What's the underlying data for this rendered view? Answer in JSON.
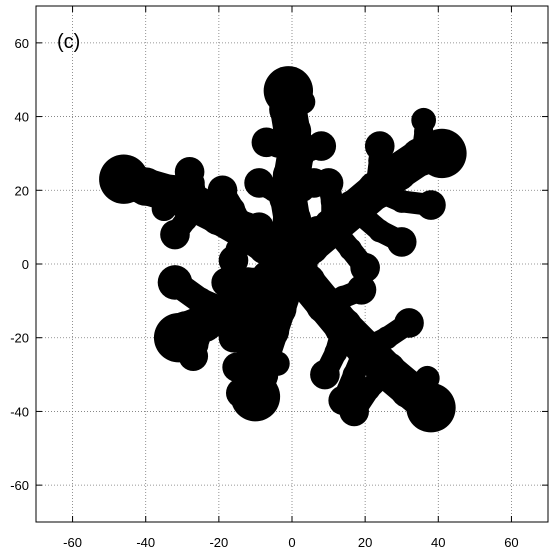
{
  "chart_data": {
    "type": "scatter",
    "panel_label": "(c)",
    "title": "",
    "xlabel": "",
    "ylabel": "",
    "xlim": [
      -70,
      70
    ],
    "ylim": [
      -70,
      70
    ],
    "x_ticks": [
      -60,
      -40,
      -20,
      0,
      20,
      40,
      60
    ],
    "y_ticks": [
      -60,
      -40,
      -20,
      0,
      20,
      40,
      60
    ],
    "x_tick_labels": [
      "-60",
      "-40",
      "-20",
      "0",
      "20",
      "40",
      "60"
    ],
    "y_tick_labels": [
      "-60",
      "-40",
      "-20",
      "0",
      "20",
      "40",
      "60"
    ],
    "grid": true,
    "grid_style": "dotted",
    "mark_color": "#000000",
    "description_shape": "six-armed dendritic cluster",
    "arms": [
      {
        "name": "arm-up",
        "points": [
          [
            0,
            0
          ],
          [
            -1,
            6
          ],
          [
            0,
            12
          ],
          [
            -1,
            18
          ],
          [
            0,
            24
          ],
          [
            1,
            30
          ],
          [
            0,
            36
          ],
          [
            -1,
            42
          ],
          [
            -1,
            47
          ]
        ],
        "width": 5.0,
        "branches": [
          {
            "from": 1,
            "points": [
              [
                -1,
                6
              ],
              [
                -5,
                8
              ],
              [
                -9,
                10
              ]
            ],
            "width": 3.0
          },
          {
            "from": 1,
            "points": [
              [
                -1,
                6
              ],
              [
                3,
                8
              ],
              [
                7,
                9
              ]
            ],
            "width": 3.0
          },
          {
            "from": 3,
            "points": [
              [
                -1,
                18
              ],
              [
                -5,
                20
              ],
              [
                -9,
                22
              ]
            ],
            "width": 3.0
          },
          {
            "from": 3,
            "points": [
              [
                -1,
                18
              ],
              [
                3,
                20
              ],
              [
                6,
                22
              ]
            ],
            "width": 3.0
          },
          {
            "from": 5,
            "points": [
              [
                1,
                30
              ],
              [
                -4,
                32
              ],
              [
                -7,
                33
              ]
            ],
            "width": 3.0
          },
          {
            "from": 5,
            "points": [
              [
                1,
                30
              ],
              [
                5,
                31
              ],
              [
                8,
                32
              ]
            ],
            "width": 3.0
          },
          {
            "from": 7,
            "points": [
              [
                -1,
                42
              ],
              [
                2,
                43
              ],
              [
                3,
                44
              ]
            ],
            "width": 2.5
          }
        ]
      },
      {
        "name": "arm-upper-left",
        "points": [
          [
            0,
            0
          ],
          [
            -7,
            5
          ],
          [
            -13,
            9
          ],
          [
            -20,
            13
          ],
          [
            -26,
            16
          ],
          [
            -33,
            19
          ],
          [
            -40,
            21
          ],
          [
            -46,
            23
          ]
        ],
        "width": 5.0,
        "branches": [
          {
            "from": 2,
            "points": [
              [
                -13,
                9
              ],
              [
                -15,
                4
              ],
              [
                -16,
                1
              ]
            ],
            "width": 3.0
          },
          {
            "from": 2,
            "points": [
              [
                -13,
                9
              ],
              [
                -16,
                15
              ],
              [
                -19,
                20
              ]
            ],
            "width": 3.0
          },
          {
            "from": 4,
            "points": [
              [
                -26,
                16
              ],
              [
                -29,
                12
              ],
              [
                -32,
                8
              ]
            ],
            "width": 3.0
          },
          {
            "from": 4,
            "points": [
              [
                -26,
                16
              ],
              [
                -27,
                22
              ],
              [
                -28,
                25
              ]
            ],
            "width": 3.0
          },
          {
            "from": 5,
            "points": [
              [
                -33,
                19
              ],
              [
                -35,
                15
              ]
            ],
            "width": 2.5
          }
        ]
      },
      {
        "name": "arm-lower-left",
        "points": [
          [
            0,
            0
          ],
          [
            -6,
            -4
          ],
          [
            -12,
            -9
          ],
          [
            -18,
            -13
          ],
          [
            -24,
            -16
          ],
          [
            -29,
            -18
          ],
          [
            -31,
            -20
          ]
        ],
        "width": 5.0,
        "branches": [
          {
            "from": 1,
            "points": [
              [
                -6,
                -4
              ],
              [
                -12,
                -4
              ],
              [
                -18,
                -5
              ]
            ],
            "width": 3.0
          },
          {
            "from": 2,
            "points": [
              [
                -12,
                -9
              ],
              [
                -14,
                -15
              ],
              [
                -16,
                -20
              ]
            ],
            "width": 3.0
          },
          {
            "from": 3,
            "points": [
              [
                -18,
                -13
              ],
              [
                -25,
                -10
              ],
              [
                -32,
                -5
              ]
            ],
            "width": 3.5
          },
          {
            "from": 4,
            "points": [
              [
                -24,
                -16
              ],
              [
                -26,
                -22
              ],
              [
                -27,
                -25
              ]
            ],
            "width": 3.0
          }
        ]
      },
      {
        "name": "arm-down",
        "points": [
          [
            0,
            0
          ],
          [
            -2,
            -6
          ],
          [
            -4,
            -12
          ],
          [
            -6,
            -18
          ],
          [
            -8,
            -24
          ],
          [
            -9,
            -30
          ],
          [
            -10,
            -36
          ]
        ],
        "width": 5.0,
        "branches": [
          {
            "from": 2,
            "points": [
              [
                -4,
                -12
              ],
              [
                -10,
                -16
              ],
              [
                -16,
                -19
              ]
            ],
            "width": 3.0
          },
          {
            "from": 3,
            "points": [
              [
                -6,
                -18
              ],
              [
                -11,
                -24
              ],
              [
                -15,
                -28
              ]
            ],
            "width": 3.0
          },
          {
            "from": 4,
            "points": [
              [
                -8,
                -24
              ],
              [
                -12,
                -31
              ],
              [
                -14,
                -35
              ]
            ],
            "width": 3.0
          },
          {
            "from": 4,
            "points": [
              [
                -8,
                -24
              ],
              [
                -4,
                -27
              ]
            ],
            "width": 2.5
          }
        ]
      },
      {
        "name": "arm-lower-right",
        "points": [
          [
            0,
            0
          ],
          [
            4,
            -5
          ],
          [
            9,
            -11
          ],
          [
            14,
            -17
          ],
          [
            20,
            -23
          ],
          [
            26,
            -29
          ],
          [
            32,
            -34
          ],
          [
            38,
            -39
          ]
        ],
        "width": 5.0,
        "branches": [
          {
            "from": 2,
            "points": [
              [
                9,
                -11
              ],
              [
                14,
                -9
              ],
              [
                19,
                -7
              ]
            ],
            "width": 3.0
          },
          {
            "from": 3,
            "points": [
              [
                14,
                -17
              ],
              [
                12,
                -24
              ],
              [
                9,
                -30
              ]
            ],
            "width": 3.0
          },
          {
            "from": 4,
            "points": [
              [
                20,
                -23
              ],
              [
                26,
                -20
              ],
              [
                32,
                -16
              ]
            ],
            "width": 3.0
          },
          {
            "from": 4,
            "points": [
              [
                20,
                -23
              ],
              [
                17,
                -30
              ],
              [
                14,
                -37
              ]
            ],
            "width": 3.0
          },
          {
            "from": 5,
            "points": [
              [
                26,
                -29
              ],
              [
                21,
                -34
              ],
              [
                17,
                -40
              ]
            ],
            "width": 3.0
          },
          {
            "from": 6,
            "points": [
              [
                32,
                -34
              ],
              [
                37,
                -31
              ]
            ],
            "width": 2.5
          }
        ]
      },
      {
        "name": "arm-upper-right",
        "points": [
          [
            0,
            0
          ],
          [
            5,
            5
          ],
          [
            11,
            10
          ],
          [
            17,
            15
          ],
          [
            23,
            20
          ],
          [
            29,
            25
          ],
          [
            35,
            29
          ],
          [
            41,
            30
          ]
        ],
        "width": 5.0,
        "branches": [
          {
            "from": 2,
            "points": [
              [
                11,
                10
              ],
              [
                16,
                4
              ],
              [
                20,
                -1
              ]
            ],
            "width": 3.0
          },
          {
            "from": 2,
            "points": [
              [
                11,
                10
              ],
              [
                11,
                17
              ],
              [
                10,
                22
              ]
            ],
            "width": 3.0
          },
          {
            "from": 3,
            "points": [
              [
                17,
                15
              ],
              [
                24,
                9
              ],
              [
                30,
                6
              ]
            ],
            "width": 3.0
          },
          {
            "from": 4,
            "points": [
              [
                23,
                20
              ],
              [
                24,
                28
              ],
              [
                24,
                32
              ]
            ],
            "width": 3.0
          },
          {
            "from": 4,
            "points": [
              [
                23,
                20
              ],
              [
                30,
                17
              ],
              [
                38,
                16
              ]
            ],
            "width": 3.0
          },
          {
            "from": 6,
            "points": [
              [
                35,
                29
              ],
              [
                36,
                36
              ],
              [
                36,
                39
              ]
            ],
            "width": 2.5
          }
        ]
      }
    ]
  }
}
